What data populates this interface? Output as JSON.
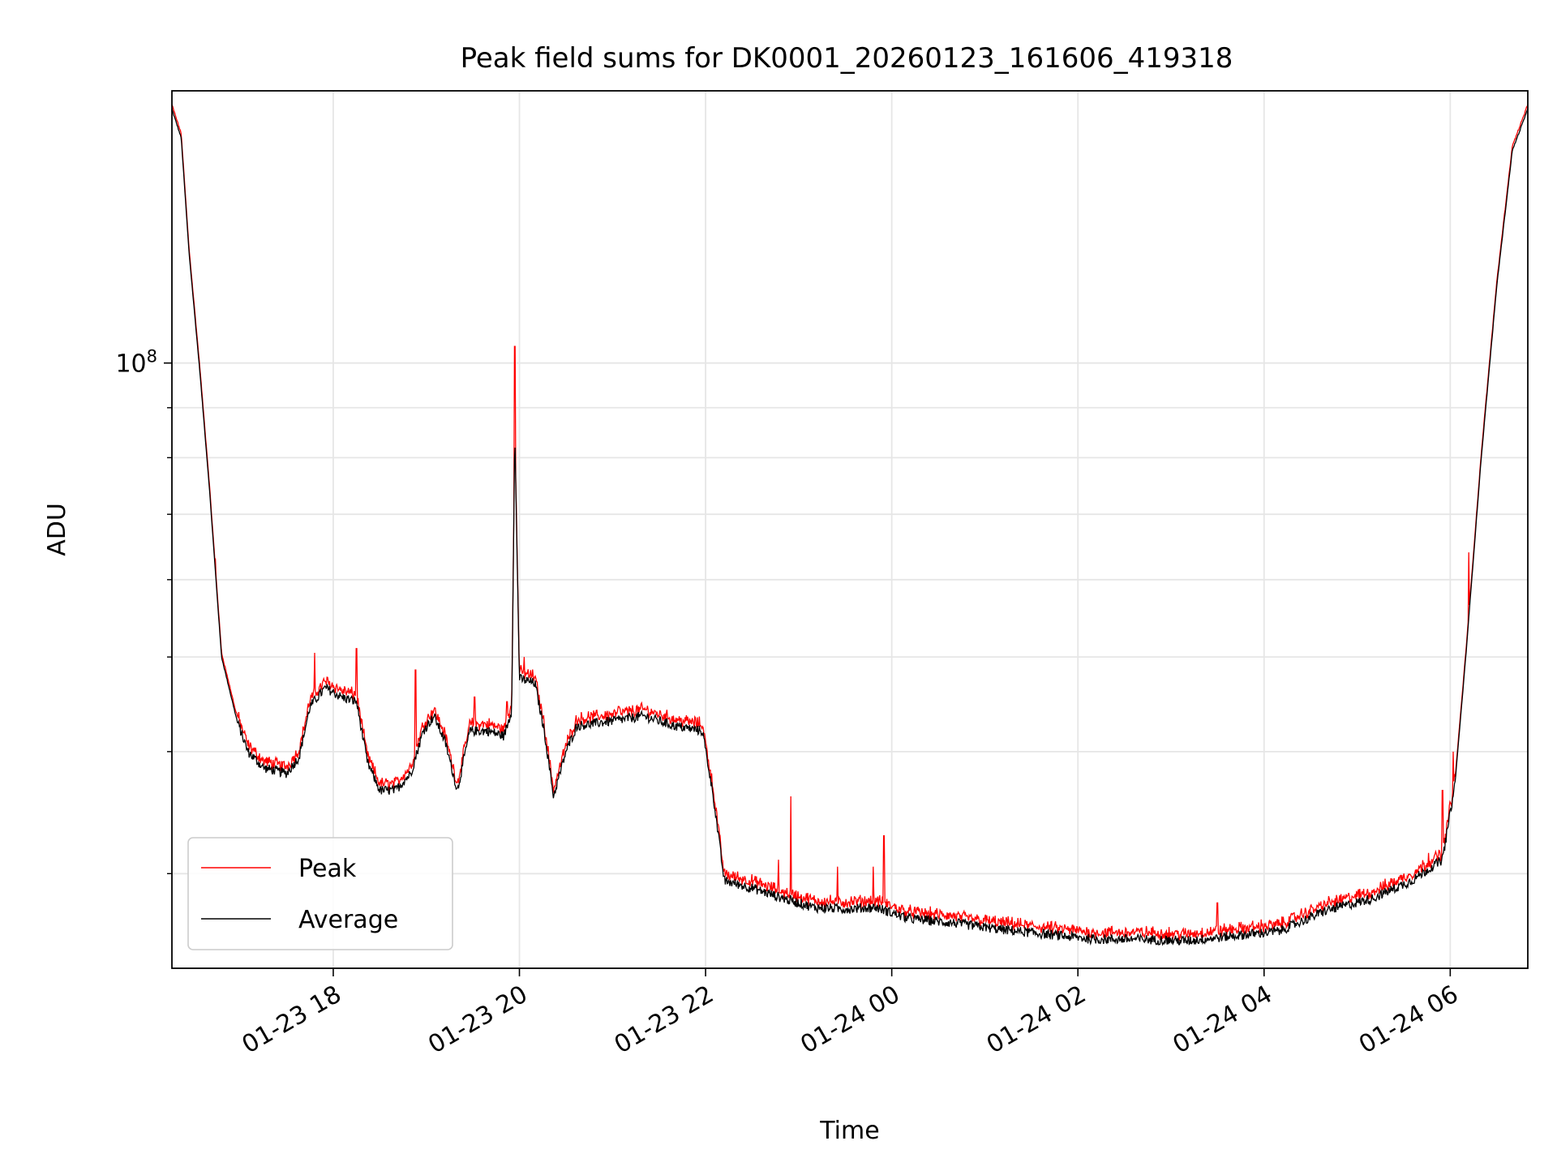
{
  "chart_data": {
    "type": "line",
    "title": "Peak field sums for DK0001_20260123_161606_419318",
    "xlabel": "Time",
    "ylabel": "ADU",
    "x_range": [
      "2026-01-23 16:16",
      "2026-01-24 06:50"
    ],
    "y_scale": "log",
    "ylim": [
      24000000,
      190000000
    ],
    "y_major_ticks": [
      {
        "value": 100000000,
        "base": "10",
        "exp": "8"
      }
    ],
    "y_minor_ticks": [
      30000000,
      40000000,
      50000000,
      60000000,
      70000000,
      80000000,
      90000000
    ],
    "x_ticks": [
      "01-23 18",
      "01-23 20",
      "01-23 22",
      "01-24 00",
      "01-24 02",
      "01-24 04",
      "01-24 06"
    ],
    "x_tick_times": [
      "2026-01-23 18:00",
      "2026-01-23 20:00",
      "2026-01-23 22:00",
      "2026-01-24 00:00",
      "2026-01-24 02:00",
      "2026-01-24 04:00",
      "2026-01-24 06:00"
    ],
    "grid": true,
    "legend_position": "lower-left",
    "series": [
      {
        "name": "Peak",
        "color": "#ff0000"
      },
      {
        "name": "Average",
        "color": "#000000"
      }
    ],
    "average_points": [
      [
        "2026-01-23 16:16",
        182000000
      ],
      [
        "2026-01-23 16:22",
        170000000
      ],
      [
        "2026-01-23 16:27",
        130000000
      ],
      [
        "2026-01-23 16:34",
        98000000
      ],
      [
        "2026-01-23 16:40",
        75000000
      ],
      [
        "2026-01-23 16:48",
        50000000
      ],
      [
        "2026-01-23 16:58",
        43000000
      ],
      [
        "2026-01-23 17:05",
        40000000
      ],
      [
        "2026-01-23 17:15",
        38500000
      ],
      [
        "2026-01-23 17:30",
        38000000
      ],
      [
        "2026-01-23 17:38",
        39500000
      ],
      [
        "2026-01-23 17:45",
        44500000
      ],
      [
        "2026-01-23 17:55",
        46500000
      ],
      [
        "2026-01-23 18:05",
        45500000
      ],
      [
        "2026-01-23 18:15",
        45000000
      ],
      [
        "2026-01-23 18:22",
        39000000
      ],
      [
        "2026-01-23 18:30",
        36500000
      ],
      [
        "2026-01-23 18:40",
        36500000
      ],
      [
        "2026-01-23 18:50",
        38000000
      ],
      [
        "2026-01-23 18:58",
        42000000
      ],
      [
        "2026-01-23 19:05",
        43500000
      ],
      [
        "2026-01-23 19:12",
        41000000
      ],
      [
        "2026-01-23 19:20",
        36500000
      ],
      [
        "2026-01-23 19:28",
        42000000
      ],
      [
        "2026-01-23 19:40",
        42000000
      ],
      [
        "2026-01-23 19:50",
        41500000
      ],
      [
        "2026-01-23 19:55",
        44000000
      ],
      [
        "2026-01-23 19:57",
        85000000
      ],
      [
        "2026-01-23 20:00",
        47500000
      ],
      [
        "2026-01-23 20:10",
        47000000
      ],
      [
        "2026-01-23 20:16",
        42000000
      ],
      [
        "2026-01-23 20:22",
        36000000
      ],
      [
        "2026-01-23 20:30",
        40000000
      ],
      [
        "2026-01-23 20:37",
        42500000
      ],
      [
        "2026-01-23 21:00",
        43000000
      ],
      [
        "2026-01-23 21:20",
        43500000
      ],
      [
        "2026-01-23 21:40",
        42500000
      ],
      [
        "2026-01-23 21:58",
        42000000
      ],
      [
        "2026-01-23 22:05",
        36000000
      ],
      [
        "2026-01-23 22:12",
        29500000
      ],
      [
        "2026-01-23 22:30",
        29000000
      ],
      [
        "2026-01-23 22:50",
        28300000
      ],
      [
        "2026-01-23 23:10",
        27700000
      ],
      [
        "2026-01-23 23:30",
        27600000
      ],
      [
        "2026-01-23 23:50",
        27700000
      ],
      [
        "2026-01-24 00:10",
        27000000
      ],
      [
        "2026-01-24 00:40",
        26700000
      ],
      [
        "2026-01-24 01:10",
        26300000
      ],
      [
        "2026-01-24 01:40",
        26000000
      ],
      [
        "2026-01-24 02:10",
        25700000
      ],
      [
        "2026-01-24 02:40",
        25700000
      ],
      [
        "2026-01-24 03:10",
        25600000
      ],
      [
        "2026-01-24 03:40",
        25900000
      ],
      [
        "2026-01-24 04:10",
        26200000
      ],
      [
        "2026-01-24 04:40",
        27500000
      ],
      [
        "2026-01-24 05:10",
        28300000
      ],
      [
        "2026-01-24 05:35",
        29500000
      ],
      [
        "2026-01-24 05:55",
        31000000
      ],
      [
        "2026-01-24 06:03",
        37000000
      ],
      [
        "2026-01-24 06:10",
        50000000
      ],
      [
        "2026-01-24 06:20",
        80000000
      ],
      [
        "2026-01-24 06:30",
        120000000
      ],
      [
        "2026-01-24 06:40",
        165000000
      ],
      [
        "2026-01-24 06:50",
        182000000
      ]
    ],
    "peak_spikes": [
      [
        "2026-01-23 16:44",
        63000000
      ],
      [
        "2026-01-23 17:40",
        40000000
      ],
      [
        "2026-01-23 17:48",
        50500000
      ],
      [
        "2026-01-23 18:15",
        51000000
      ],
      [
        "2026-01-23 18:53",
        48500000
      ],
      [
        "2026-01-23 19:31",
        45500000
      ],
      [
        "2026-01-23 19:52",
        45000000
      ],
      [
        "2026-01-23 19:57",
        104000000
      ],
      [
        "2026-01-23 20:03",
        50000000
      ],
      [
        "2026-01-23 21:04",
        44500000
      ],
      [
        "2026-01-23 22:09",
        31500000
      ],
      [
        "2026-01-23 22:47",
        31000000
      ],
      [
        "2026-01-23 22:55",
        36000000
      ],
      [
        "2026-01-23 23:25",
        30500000
      ],
      [
        "2026-01-23 23:48",
        30500000
      ],
      [
        "2026-01-23 23:55",
        32800000
      ],
      [
        "2026-01-24 03:30",
        28000000
      ],
      [
        "2026-01-24 05:46",
        31500000
      ],
      [
        "2026-01-24 05:55",
        36500000
      ],
      [
        "2026-01-24 06:02",
        40000000
      ],
      [
        "2026-01-24 06:12",
        64000000
      ]
    ]
  }
}
